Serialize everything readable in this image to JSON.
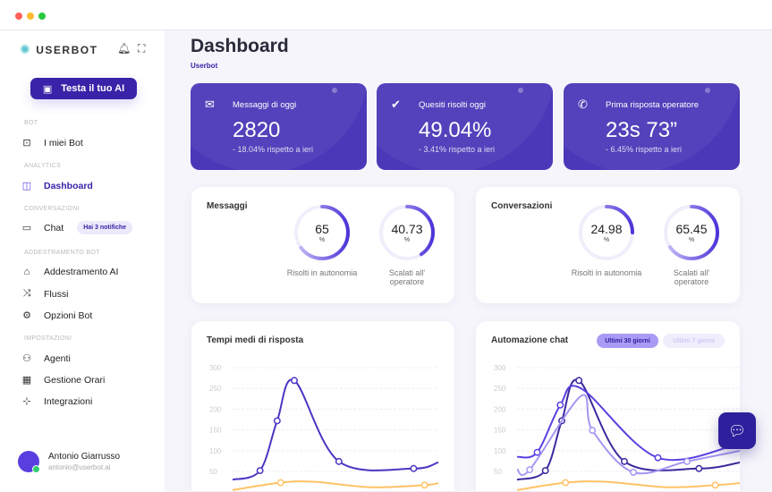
{
  "window": {
    "controls": [
      "close",
      "minimize",
      "maximize"
    ]
  },
  "sidebar": {
    "brand": "USERBOT",
    "icons": {
      "bell": "bell-icon",
      "fullscreen": "fullscreen-icon"
    },
    "cta_label": "Testa il tuo AI",
    "sections": [
      {
        "title": "BOT",
        "items": [
          {
            "label": "I miei Bot",
            "icon": "robot-icon"
          }
        ]
      },
      {
        "title": "ANALYTICS",
        "items": [
          {
            "label": "Dashboard",
            "icon": "layout-icon",
            "active": true
          }
        ]
      },
      {
        "title": "CONVERSAZIONI",
        "items": [
          {
            "label": "Chat",
            "icon": "chat-icon",
            "badge": "Hai 3 notifiche"
          }
        ]
      },
      {
        "title": "ADDESTRAMENTO BOT",
        "items": [
          {
            "label": "Addestramento AI",
            "icon": "graduation-cap-icon"
          },
          {
            "label": "Flussi",
            "icon": "shuffle-icon"
          },
          {
            "label": "Opzioni Bot",
            "icon": "gear-icon"
          }
        ]
      },
      {
        "title": "IMPOSTAZIONI",
        "items": [
          {
            "label": "Agenti",
            "icon": "users-icon"
          },
          {
            "label": "Gestione Orari",
            "icon": "calendar-icon"
          },
          {
            "label": "Integrazioni",
            "icon": "integration-icon"
          }
        ]
      }
    ],
    "user": {
      "name": "Antonio Giarrusso",
      "email": "antonio@userbot.ai"
    }
  },
  "header": {
    "title": "Dashboard",
    "breadcrumb": "Userbot"
  },
  "stats": [
    {
      "label": "Messaggi di oggi",
      "value": "2820",
      "delta": "- 18.04% rispetto a ieri",
      "icon": "mail-icon"
    },
    {
      "label": "Quesiti risolti oggi",
      "value": "49.04%",
      "delta": "- 3.41% rispetto a ieri",
      "icon": "double-check-icon"
    },
    {
      "label": "Prima risposta operatore",
      "value": "23s 73”",
      "delta": "- 6.45% rispetto a ieri",
      "icon": "phone-icon"
    }
  ],
  "donut_cards": [
    {
      "title": "Messaggi",
      "donuts": [
        {
          "value": "65",
          "unit": "%",
          "fraction": 0.65,
          "label": "Risolti in autonomia"
        },
        {
          "value": "40.73",
          "unit": "%",
          "fraction": 0.4073,
          "label": "Scalati all' operatore"
        }
      ]
    },
    {
      "title": "Conversazioni",
      "donuts": [
        {
          "value": "24.98",
          "unit": "%",
          "fraction": 0.2498,
          "label": "Risolti in autonomia"
        },
        {
          "value": "65.45",
          "unit": "%",
          "fraction": 0.6545,
          "label": "Scalati all' operatore"
        }
      ]
    }
  ],
  "chart_cards": {
    "left_title": "Tempi medi di risposta",
    "right_title": "Automazione chat",
    "filters": [
      {
        "label": "Ultimi 30 giorni",
        "active": true
      },
      {
        "label": "Ultimi 7 giorni",
        "active": false
      }
    ]
  },
  "chart_data": [
    {
      "type": "line",
      "title": "Tempi medi di risposta",
      "yticks": [
        "50",
        "100",
        "150",
        "200",
        "250",
        "300"
      ],
      "ylim": [
        0,
        300
      ],
      "grid": true,
      "series": [
        {
          "color": "#4b35c4",
          "points": [
            [
              0,
              30
            ],
            [
              4,
              52
            ],
            [
              6.5,
              172
            ],
            [
              9,
              269
            ],
            [
              15.5,
              74
            ],
            [
              26.4,
              57
            ],
            [
              30,
              72
            ]
          ],
          "markers": [
            1,
            2,
            3,
            4,
            5
          ]
        },
        {
          "color": "#ffc266",
          "points": [
            [
              0,
              5
            ],
            [
              7,
              23
            ],
            [
              12,
              25
            ],
            [
              20,
              12
            ],
            [
              28,
              17
            ],
            [
              30,
              22
            ]
          ],
          "markers": [
            1,
            4
          ]
        }
      ]
    },
    {
      "type": "line",
      "title": "Automazione chat",
      "yticks": [
        "50",
        "100",
        "150",
        "200",
        "250",
        "300"
      ],
      "ylim": [
        0,
        300
      ],
      "grid": true,
      "series": [
        {
          "color": "#3a2a9e",
          "points": [
            [
              0,
              30
            ],
            [
              3.8,
              52
            ],
            [
              6,
              172
            ],
            [
              8.3,
              269
            ],
            [
              14.4,
              74
            ],
            [
              24.4,
              57
            ],
            [
              30,
              72
            ]
          ],
          "markers": [
            1,
            2,
            3,
            4,
            5
          ]
        },
        {
          "color": "#5b3ee0",
          "points": [
            [
              0,
              85
            ],
            [
              2.7,
              96
            ],
            [
              5.8,
              210
            ],
            [
              8.6,
              250
            ],
            [
              18.9,
              83
            ],
            [
              30,
              118
            ]
          ],
          "markers": [
            1,
            2,
            4
          ]
        },
        {
          "color": "#a596f2",
          "points": [
            [
              0,
              55
            ],
            [
              1.7,
              54
            ],
            [
              8.6,
              232
            ],
            [
              10.1,
              149
            ],
            [
              15.6,
              48
            ],
            [
              22.8,
              74
            ],
            [
              30,
              100
            ]
          ],
          "markers": [
            1,
            3,
            4,
            5
          ]
        },
        {
          "color": "#ffc266",
          "points": [
            [
              0,
              5
            ],
            [
              6.5,
              23
            ],
            [
              12,
              25
            ],
            [
              20,
              12
            ],
            [
              26.6,
              17
            ],
            [
              30,
              22
            ]
          ],
          "markers": [
            1,
            4
          ]
        }
      ]
    }
  ],
  "chat_fab_icon": "chat-bubble-icon"
}
